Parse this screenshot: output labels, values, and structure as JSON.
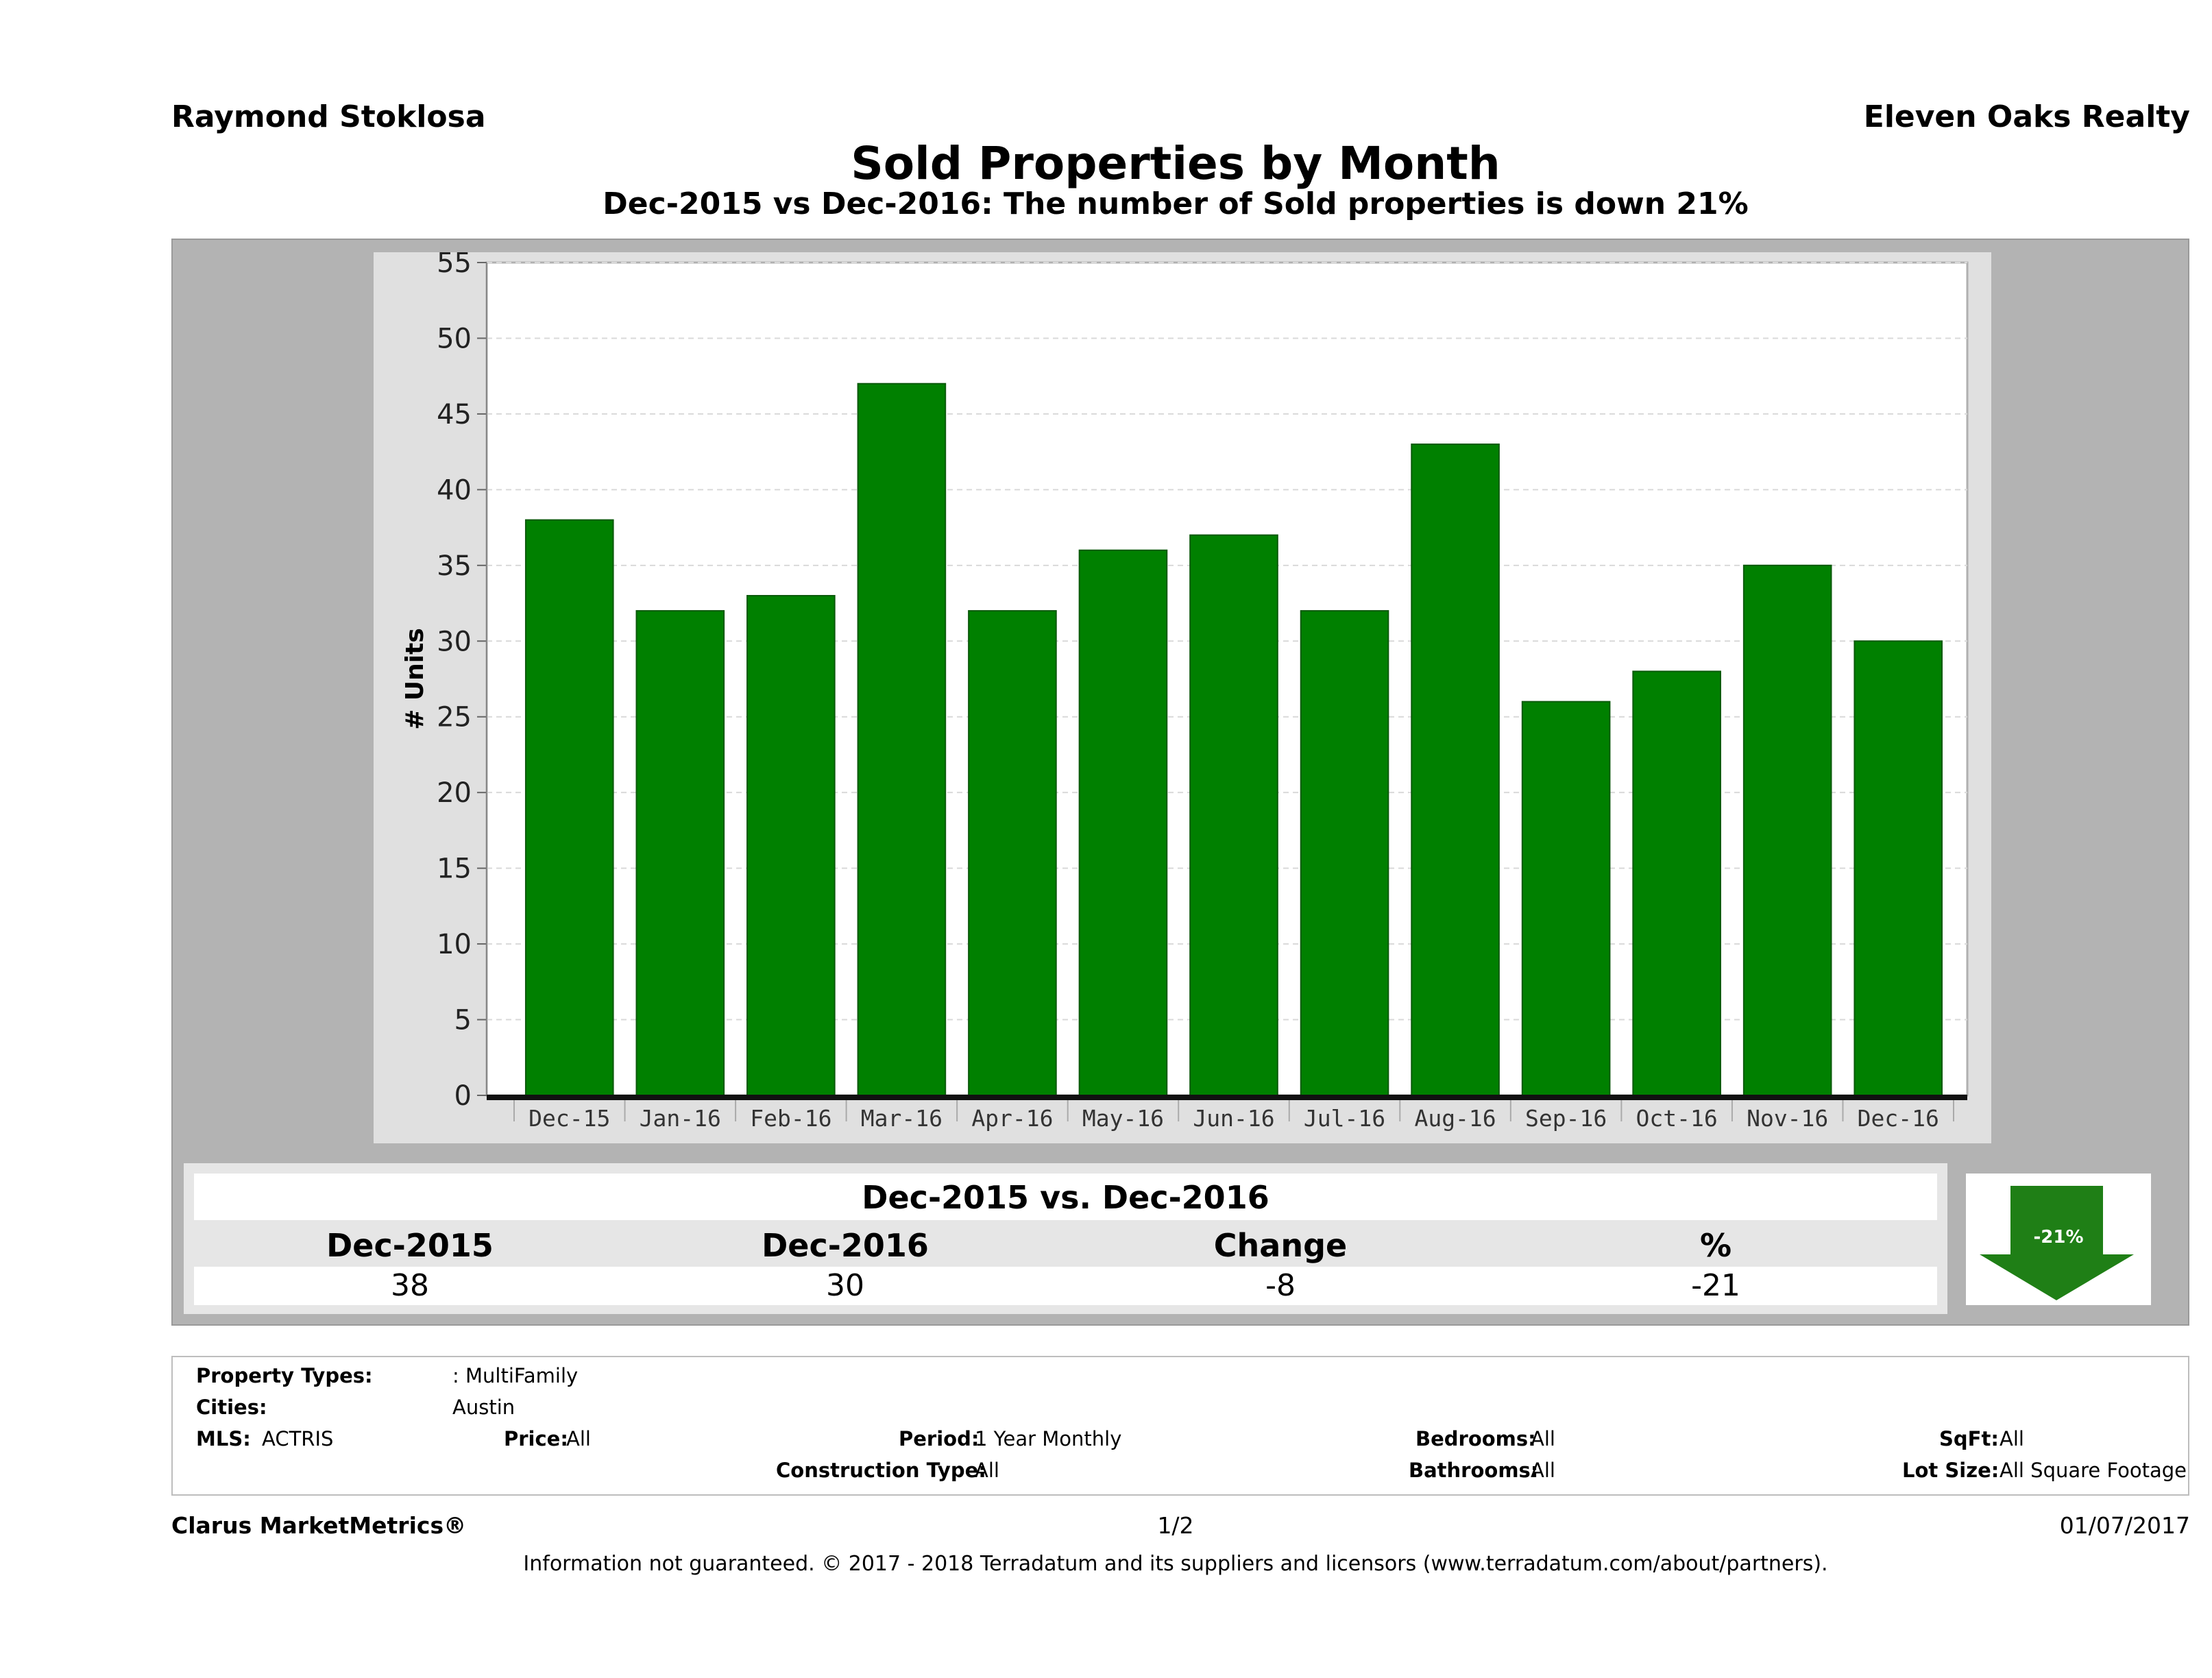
{
  "header": {
    "agent": "Raymond Stoklosa",
    "company": "Eleven Oaks Realty",
    "title": "Sold Properties by Month",
    "subtitle": "Dec-2015 vs Dec-2016: The number of Sold  properties is down 21%"
  },
  "chart_data": {
    "type": "bar",
    "categories": [
      "Dec-15",
      "Jan-16",
      "Feb-16",
      "Mar-16",
      "Apr-16",
      "May-16",
      "Jun-16",
      "Jul-16",
      "Aug-16",
      "Sep-16",
      "Oct-16",
      "Nov-16",
      "Dec-16"
    ],
    "values": [
      38,
      32,
      33,
      47,
      32,
      36,
      37,
      32,
      43,
      26,
      28,
      35,
      30
    ],
    "ylabel": "# Units",
    "xlabel": "",
    "ylim": [
      0,
      55
    ],
    "yticks": [
      0,
      5,
      10,
      15,
      20,
      25,
      30,
      35,
      40,
      45,
      50,
      55
    ],
    "grid": true,
    "bar_color": "#008000"
  },
  "summary": {
    "title": "Dec-2015 vs. Dec-2016",
    "headers": [
      "Dec-2015",
      "Dec-2016",
      "Change",
      "%"
    ],
    "values": [
      "38",
      "30",
      "-8",
      "-21"
    ],
    "arrow_label": "-21%",
    "arrow_color": "#1f7f16"
  },
  "criteria": {
    "property_types_label": "Property Types:",
    "property_types_value": ": MultiFamily",
    "cities_label": "Cities:",
    "cities_value": "Austin",
    "mls_label": "MLS:",
    "mls_value": "ACTRIS",
    "price_label": "Price:",
    "price_value": "All",
    "period_label": "Period:",
    "period_value": "1 Year Monthly",
    "construction_label": "Construction Type:",
    "construction_value": "All",
    "bedrooms_label": "Bedrooms:",
    "bedrooms_value": "All",
    "bathrooms_label": "Bathrooms:",
    "bathrooms_value": "All",
    "sqft_label": "SqFt:",
    "sqft_value": "All",
    "lotsize_label": "Lot Size:",
    "lotsize_value": "All Square Footage"
  },
  "footer": {
    "brand": "Clarus MarketMetrics®",
    "page": "1/2",
    "date": "01/07/2017",
    "disclaimer": "Information not guaranteed. © 2017 - 2018 Terradatum and its suppliers and licensors (www.terradatum.com/about/partners)."
  }
}
